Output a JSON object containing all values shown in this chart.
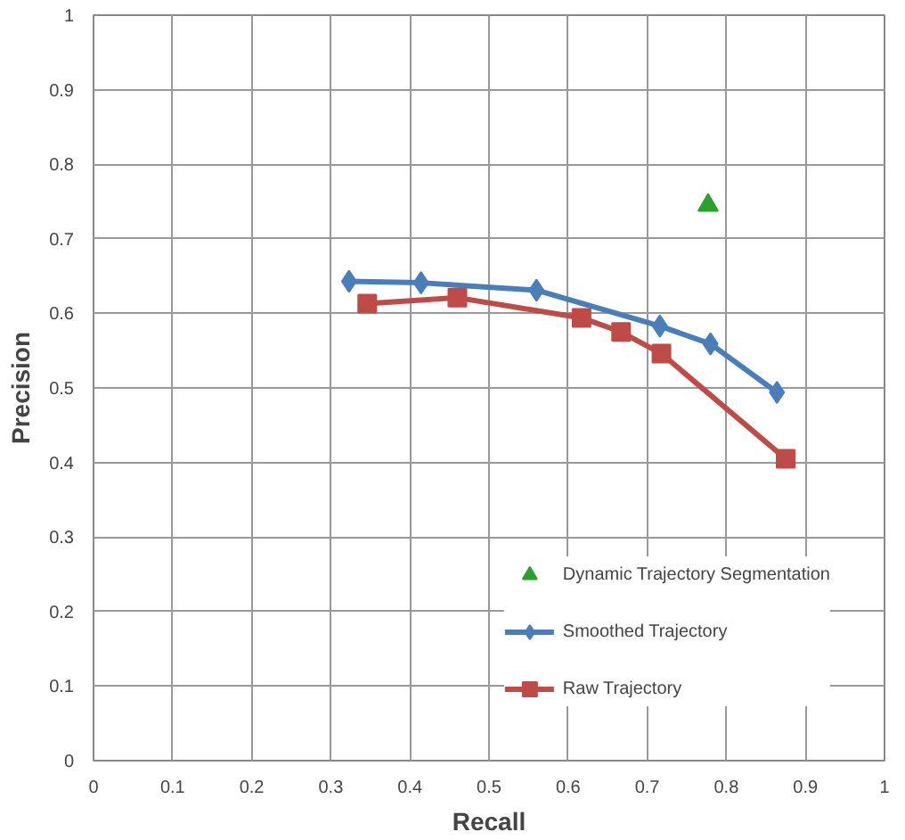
{
  "chart_data": {
    "type": "line",
    "xlabel": "Recall",
    "ylabel": "Precision",
    "xlim": [
      0,
      1
    ],
    "ylim": [
      0,
      1
    ],
    "xticks": [
      0,
      0.1,
      0.2,
      0.3,
      0.4,
      0.5,
      0.6,
      0.7,
      0.8,
      0.9,
      1
    ],
    "yticks": [
      0,
      0.1,
      0.2,
      0.3,
      0.4,
      0.5,
      0.6,
      0.7,
      0.8,
      0.9,
      1
    ],
    "grid": true,
    "legend": "bottom right",
    "series": [
      {
        "name": "Dynamic Trajectory Segmentation",
        "type": "scatter",
        "marker": "triangle",
        "color": "#2ca02c",
        "x": [
          0.777
        ],
        "values": [
          0.745
        ]
      },
      {
        "name": "Smoothed Trajectory",
        "marker": "diamond",
        "color": "#4a7ebb",
        "x": [
          0.323,
          0.414,
          0.56,
          0.716,
          0.78,
          0.864
        ],
        "values": [
          0.643,
          0.641,
          0.631,
          0.583,
          0.559,
          0.494
        ]
      },
      {
        "name": "Raw Trajectory",
        "marker": "square",
        "color": "#be4b48",
        "x": [
          0.346,
          0.46,
          0.617,
          0.667,
          0.718,
          0.875
        ],
        "values": [
          0.613,
          0.621,
          0.594,
          0.575,
          0.546,
          0.405
        ]
      }
    ]
  }
}
